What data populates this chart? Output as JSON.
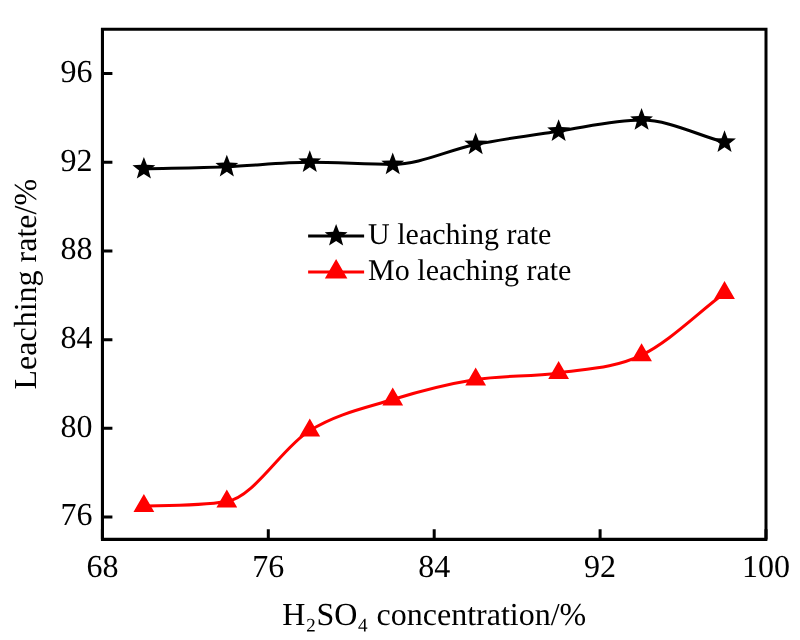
{
  "chart_data": {
    "type": "line",
    "xlabel": "H₂SO₄ concentration/%",
    "ylabel": "Leaching rate/%",
    "x": [
      70,
      74,
      78,
      82,
      86,
      90,
      94,
      98
    ],
    "series": [
      {
        "name": "U leaching rate",
        "color": "#000000",
        "marker": "star",
        "values": [
          91.7,
          91.8,
          92.0,
          91.9,
          92.8,
          93.4,
          93.9,
          92.9
        ]
      },
      {
        "name": "Mo leaching rate",
        "color": "#ff0000",
        "marker": "triangle",
        "values": [
          76.5,
          76.7,
          79.9,
          81.3,
          82.2,
          82.5,
          83.3,
          86.1
        ]
      }
    ],
    "xlim": [
      68,
      100
    ],
    "xticks": [
      68,
      76,
      84,
      92,
      100
    ],
    "ylim": [
      75,
      98
    ],
    "yticks": [
      76,
      80,
      84,
      88,
      92,
      96
    ],
    "grid": false,
    "legend": "center"
  }
}
